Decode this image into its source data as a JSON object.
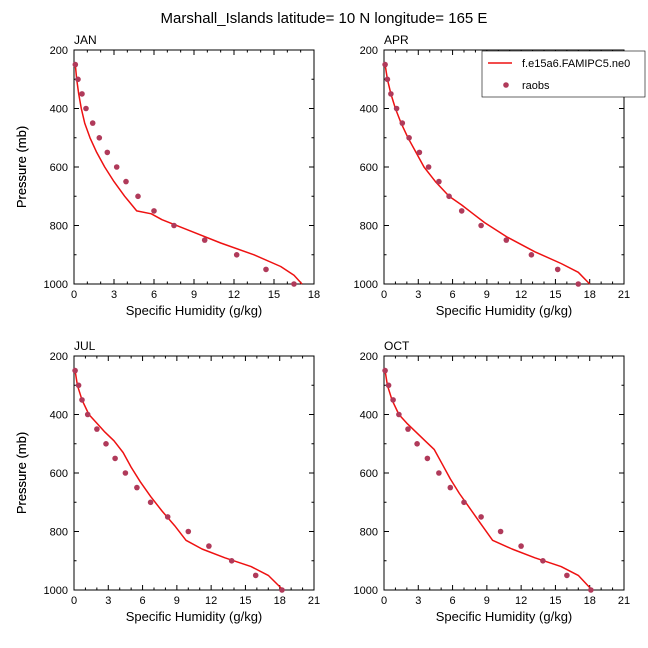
{
  "title": "Marshall_Islands  latitude= 10 N longitude= 165 E",
  "colors": {
    "model": "#ee1111",
    "obs": "#b03a5a",
    "axis": "#000000"
  },
  "legend": {
    "model_label": "f.e15a6.FAMIPC5.ne0",
    "obs_label": "raobs"
  },
  "chart_data": [
    {
      "type": "line",
      "panel": "JAN",
      "xlabel": "Specific Humidity (g/kg)",
      "ylabel": "Pressure (mb)",
      "xlim": [
        0,
        18
      ],
      "ylim": [
        200,
        1000
      ],
      "xticks": [
        0,
        3,
        6,
        9,
        12,
        15,
        18
      ],
      "yticks": [
        200,
        400,
        600,
        800,
        1000
      ],
      "series": [
        {
          "name": "f.e15a6.FAMIPC5.ne0",
          "kind": "line",
          "x": [
            0.1,
            0.2,
            0.35,
            0.55,
            0.8,
            1.2,
            1.7,
            2.3,
            3.0,
            3.8,
            4.7,
            5.8,
            6.6,
            8.8,
            11.0,
            13.5,
            15.5,
            16.5,
            17.1
          ],
          "y": [
            250,
            300,
            350,
            400,
            450,
            500,
            550,
            600,
            650,
            700,
            750,
            760,
            780,
            820,
            860,
            900,
            940,
            970,
            1000
          ]
        },
        {
          "name": "raobs",
          "kind": "scatter",
          "x": [
            0.1,
            0.3,
            0.6,
            0.9,
            1.4,
            1.9,
            2.5,
            3.2,
            3.9,
            4.8,
            6.0,
            7.5,
            9.8,
            12.2,
            14.4,
            16.5
          ],
          "y": [
            250,
            300,
            350,
            400,
            450,
            500,
            550,
            600,
            650,
            700,
            750,
            800,
            850,
            900,
            950,
            1000
          ]
        }
      ]
    },
    {
      "type": "line",
      "panel": "APR",
      "xlabel": "Specific Humidity (g/kg)",
      "ylabel": "Pressure (mb)",
      "xlim": [
        0,
        21
      ],
      "ylim": [
        200,
        1000
      ],
      "xticks": [
        0,
        3,
        6,
        9,
        12,
        15,
        18,
        21
      ],
      "yticks": [
        200,
        400,
        600,
        800,
        1000
      ],
      "series": [
        {
          "name": "f.e15a6.FAMIPC5.ne0",
          "kind": "line",
          "x": [
            0.1,
            0.3,
            0.6,
            1.0,
            1.5,
            2.1,
            2.8,
            3.5,
            4.5,
            5.7,
            6.8,
            7.8,
            8.8,
            10.8,
            13.2,
            15.5,
            17.0,
            18.0
          ],
          "y": [
            250,
            300,
            350,
            400,
            450,
            500,
            550,
            600,
            650,
            700,
            730,
            760,
            790,
            840,
            890,
            930,
            960,
            1000
          ]
        },
        {
          "name": "raobs",
          "kind": "scatter",
          "x": [
            0.1,
            0.3,
            0.6,
            1.1,
            1.6,
            2.2,
            3.1,
            3.9,
            4.8,
            5.7,
            6.8,
            8.5,
            10.7,
            12.9,
            15.2,
            17.0
          ],
          "y": [
            250,
            300,
            350,
            400,
            450,
            500,
            550,
            600,
            650,
            700,
            750,
            800,
            850,
            900,
            950,
            1000
          ]
        }
      ]
    },
    {
      "type": "line",
      "panel": "JUL",
      "xlabel": "Specific Humidity (g/kg)",
      "ylabel": "Pressure (mb)",
      "xlim": [
        0,
        21
      ],
      "ylim": [
        200,
        1000
      ],
      "xticks": [
        0,
        3,
        6,
        9,
        12,
        15,
        18,
        21
      ],
      "yticks": [
        200,
        400,
        600,
        800,
        1000
      ],
      "series": [
        {
          "name": "f.e15a6.FAMIPC5.ne0",
          "kind": "line",
          "x": [
            0.1,
            0.3,
            0.7,
            1.3,
            2.0,
            2.7,
            3.5,
            4.3,
            5.0,
            5.8,
            6.7,
            7.7,
            8.8,
            9.8,
            11.2,
            13.2,
            15.5,
            17.0,
            18.3
          ],
          "y": [
            250,
            300,
            350,
            400,
            430,
            460,
            490,
            530,
            580,
            630,
            680,
            730,
            780,
            830,
            860,
            890,
            920,
            950,
            1000
          ]
        },
        {
          "name": "raobs",
          "kind": "scatter",
          "x": [
            0.1,
            0.4,
            0.7,
            1.2,
            2.0,
            2.8,
            3.6,
            4.5,
            5.5,
            6.7,
            8.2,
            10.0,
            11.8,
            13.8,
            15.9,
            18.2
          ],
          "y": [
            250,
            300,
            350,
            400,
            450,
            500,
            550,
            600,
            650,
            700,
            750,
            800,
            850,
            900,
            950,
            1000
          ]
        }
      ]
    },
    {
      "type": "line",
      "panel": "OCT",
      "xlabel": "Specific Humidity (g/kg)",
      "ylabel": "Pressure (mb)",
      "xlim": [
        0,
        21
      ],
      "ylim": [
        200,
        1000
      ],
      "xticks": [
        0,
        3,
        6,
        9,
        12,
        15,
        18,
        21
      ],
      "yticks": [
        200,
        400,
        600,
        800,
        1000
      ],
      "series": [
        {
          "name": "f.e15a6.FAMIPC5.ne0",
          "kind": "line",
          "x": [
            0.1,
            0.3,
            0.7,
            1.3,
            2.0,
            2.8,
            3.6,
            4.4,
            5.1,
            5.8,
            6.6,
            7.5,
            8.4,
            9.5,
            11.2,
            13.2,
            15.5,
            17.0,
            18.2
          ],
          "y": [
            250,
            300,
            350,
            400,
            430,
            460,
            490,
            520,
            570,
            620,
            670,
            720,
            770,
            830,
            860,
            890,
            920,
            950,
            1000
          ]
        },
        {
          "name": "raobs",
          "kind": "scatter",
          "x": [
            0.1,
            0.4,
            0.8,
            1.3,
            2.1,
            2.9,
            3.8,
            4.8,
            5.8,
            7.0,
            8.5,
            10.2,
            12.0,
            13.9,
            16.0,
            18.1
          ],
          "y": [
            250,
            300,
            350,
            400,
            450,
            500,
            550,
            600,
            650,
            700,
            750,
            800,
            850,
            900,
            950,
            1000
          ]
        }
      ]
    }
  ]
}
